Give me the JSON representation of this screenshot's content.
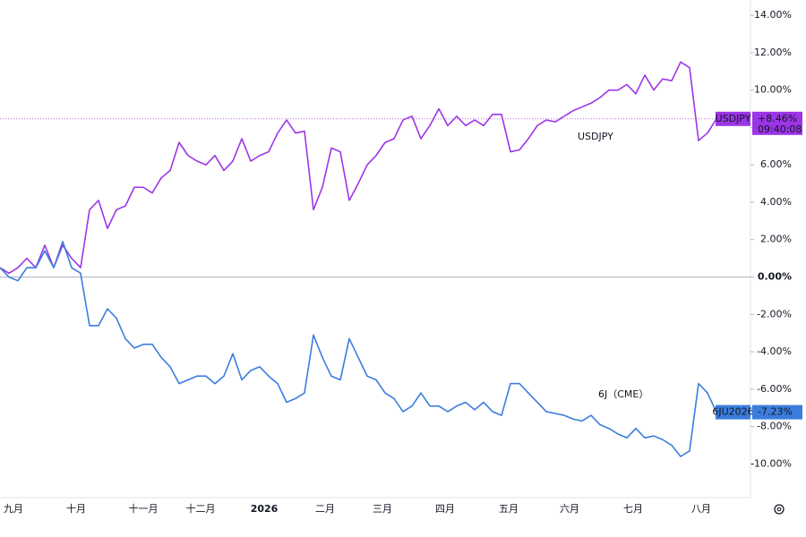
{
  "chart_data": {
    "type": "line",
    "ylim": [
      -11.8,
      14.1
    ],
    "yticks": [
      {
        "value": -10,
        "label": "-10.00%"
      },
      {
        "value": -8,
        "label": "-8.00%"
      },
      {
        "value": -6,
        "label": "-6.00%"
      },
      {
        "value": -4,
        "label": "-4.00%"
      },
      {
        "value": -2,
        "label": "-2.00%"
      },
      {
        "value": 0,
        "label": "0.00%"
      },
      {
        "value": 2,
        "label": "2.00%"
      },
      {
        "value": 4,
        "label": "4.00%"
      },
      {
        "value": 6,
        "label": "6.00%"
      },
      {
        "value": 8,
        "label": "8.00%"
      },
      {
        "value": 10,
        "label": "10.00%"
      },
      {
        "value": 12,
        "label": "12.00%"
      },
      {
        "value": 14,
        "label": "14.00%"
      }
    ],
    "xlim": [
      0,
      83.8
    ],
    "xticks": [
      {
        "value": 1.5,
        "label": "九月"
      },
      {
        "value": 8.5,
        "label": "十月"
      },
      {
        "value": 16,
        "label": "十一月"
      },
      {
        "value": 22.4,
        "label": "十二月"
      },
      {
        "value": 29.5,
        "label": "2026"
      },
      {
        "value": 36.3,
        "label": "二月"
      },
      {
        "value": 42.7,
        "label": "三月"
      },
      {
        "value": 49.7,
        "label": "四月"
      },
      {
        "value": 56.8,
        "label": "五月"
      },
      {
        "value": 63.6,
        "label": "六月"
      },
      {
        "value": 70.7,
        "label": "七月"
      },
      {
        "value": 78.3,
        "label": "八月"
      }
    ],
    "series": [
      {
        "name": "USDJPY",
        "color": "#9c35e6",
        "last_value_label": "+8.46%",
        "time": "09:40:08",
        "values": [
          0.5,
          0.2,
          0.5,
          1.0,
          0.5,
          1.7,
          0.5,
          1.7,
          1.0,
          0.5,
          3.6,
          4.1,
          2.6,
          3.6,
          3.8,
          4.8,
          4.8,
          4.5,
          5.3,
          5.7,
          7.2,
          6.5,
          6.2,
          6.0,
          6.5,
          5.7,
          6.2,
          7.4,
          6.2,
          6.5,
          6.7,
          7.7,
          8.4,
          7.7,
          7.8,
          3.6,
          4.8,
          6.9,
          6.7,
          4.1,
          5.0,
          6.0,
          6.5,
          7.2,
          7.4,
          8.4,
          8.6,
          7.4,
          8.1,
          9.0,
          8.1,
          8.6,
          8.1,
          8.4,
          8.1,
          8.7,
          8.7,
          6.7,
          6.8,
          7.4,
          8.1,
          8.4,
          8.3,
          8.6,
          8.9,
          9.1,
          9.3,
          9.6,
          10.0,
          10.0,
          10.3,
          9.8,
          10.8,
          10.0,
          10.6,
          10.5,
          11.5,
          11.2,
          7.3,
          7.7,
          8.46
        ]
      },
      {
        "name": "6JU2026",
        "color": "#3b7ddd",
        "last_value_label": "-7.23%",
        "values": [
          0.5,
          0,
          -0.2,
          0.5,
          0.5,
          1.4,
          0.5,
          1.9,
          0.5,
          0.2,
          -2.6,
          -2.6,
          -1.7,
          -2.2,
          -3.3,
          -3.8,
          -3.6,
          -3.6,
          -4.3,
          -4.8,
          -5.7,
          -5.5,
          -5.3,
          -5.3,
          -5.7,
          -5.3,
          -4.1,
          -5.5,
          -5.0,
          -4.8,
          -5.3,
          -5.7,
          -6.7,
          -6.5,
          -6.2,
          -3.1,
          -4.3,
          -5.3,
          -5.5,
          -3.3,
          -4.3,
          -5.3,
          -5.5,
          -6.2,
          -6.5,
          -7.2,
          -6.9,
          -6.2,
          -6.9,
          -6.9,
          -7.2,
          -6.9,
          -6.7,
          -7.1,
          -6.7,
          -7.2,
          -7.4,
          -5.7,
          -5.7,
          -6.2,
          -6.7,
          -7.2,
          -7.3,
          -7.4,
          -7.6,
          -7.7,
          -7.4,
          -7.9,
          -8.1,
          -8.4,
          -8.6,
          -8.1,
          -8.6,
          -8.5,
          -8.7,
          -9.0,
          -9.6,
          -9.3,
          -5.7,
          -6.2,
          -7.23
        ]
      }
    ],
    "annotations": [
      {
        "text": "USDJPY"
      },
      {
        "text": "6J（CME）"
      }
    ]
  }
}
